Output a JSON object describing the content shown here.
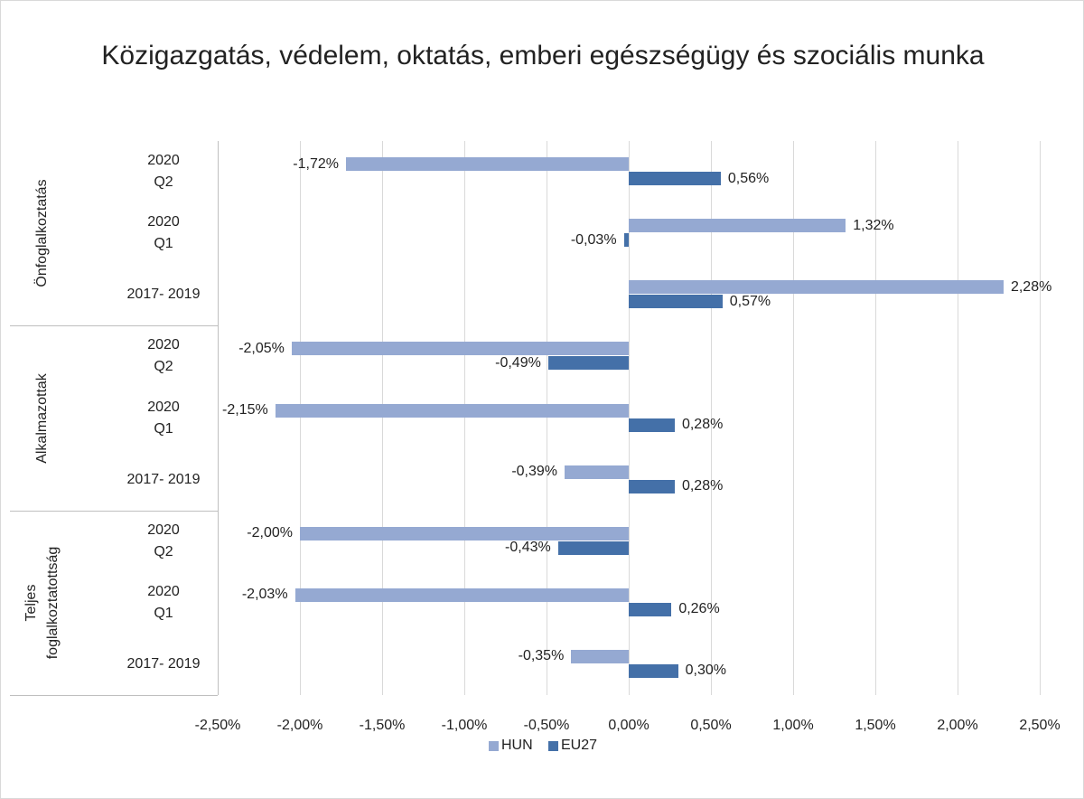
{
  "chart_data": {
    "type": "bar",
    "orientation": "horizontal",
    "title": "Közigazgatás, védelem, oktatás, emberi egészségügy és szociális munka",
    "groups": [
      "Önfoglalkoztatás",
      "Alkalmazottak",
      "Teljes\nfoglalkoztatottság"
    ],
    "categories": [
      "2020\nQ2",
      "2020\nQ1",
      "2017- 2019",
      "2020\nQ2",
      "2020\nQ1",
      "2017- 2019",
      "2020\nQ2",
      "2020\nQ1",
      "2017- 2019"
    ],
    "series": [
      {
        "name": "HUN",
        "color": "#95a9d2",
        "values": [
          -1.72,
          1.32,
          2.28,
          -2.05,
          -2.15,
          -0.39,
          -2.0,
          -2.03,
          -0.35
        ],
        "value_labels": [
          "-1,72%",
          "1,32%",
          "2,28%",
          "-2,05%",
          "-2,15%",
          "-0,39%",
          "-2,00%",
          "-2,03%",
          "-0,35%"
        ]
      },
      {
        "name": "EU27",
        "color": "#4470a8",
        "values": [
          0.56,
          -0.03,
          0.57,
          -0.49,
          0.28,
          0.28,
          -0.43,
          0.26,
          0.3
        ],
        "value_labels": [
          "0,56%",
          "-0,03%",
          "0,57%",
          "-0,49%",
          "0,28%",
          "0,28%",
          "-0,43%",
          "0,26%",
          "0,30%"
        ]
      }
    ],
    "xlim": [
      -2.5,
      2.5
    ],
    "xticks": [
      {
        "value": -2.5,
        "label": "-2,50%"
      },
      {
        "value": -2.0,
        "label": "-2,00%"
      },
      {
        "value": -1.5,
        "label": "-1,50%"
      },
      {
        "value": -1.0,
        "label": "-1,00%"
      },
      {
        "value": -0.5,
        "label": "-0,50%"
      },
      {
        "value": 0,
        "label": "0,00%"
      },
      {
        "value": 0.5,
        "label": "0,50%"
      },
      {
        "value": 1.0,
        "label": "1,00%"
      },
      {
        "value": 1.5,
        "label": "1,50%"
      },
      {
        "value": 2.0,
        "label": "2,00%"
      },
      {
        "value": 2.5,
        "label": "2,50%"
      }
    ],
    "grid": true,
    "legend": "bottom"
  }
}
